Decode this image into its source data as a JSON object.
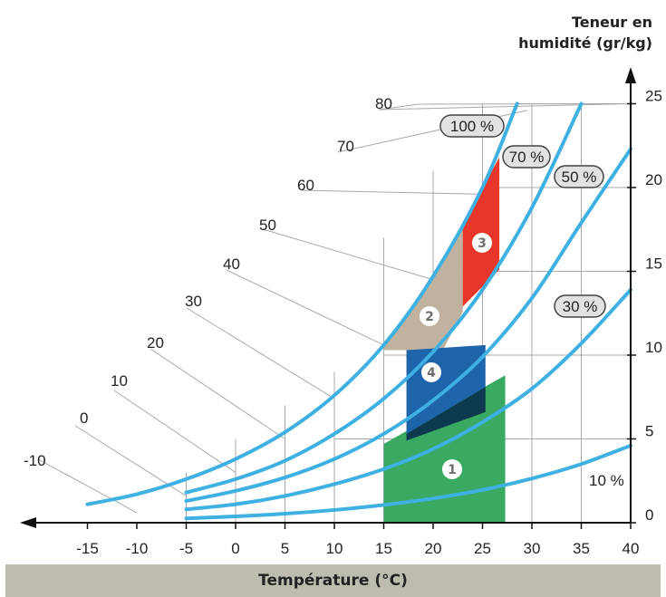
{
  "chart_data": {
    "type": "line",
    "title": "",
    "xlabel": "Température (°C)",
    "ylabel": "Teneur en humidité (gr/kg)",
    "xlim": [
      -15,
      40
    ],
    "ylim": [
      0,
      25
    ],
    "x_ticks": [
      "-15",
      "-10",
      "-5",
      "0",
      "5",
      "10",
      "15",
      "20",
      "25",
      "30",
      "35",
      "40"
    ],
    "y_ticks": [
      "0",
      "5",
      "10",
      "15",
      "20",
      "25"
    ],
    "enthalpy_ticks": [
      "-10",
      "0",
      "10",
      "20",
      "30",
      "40",
      "50",
      "60",
      "70",
      "80"
    ],
    "series": [
      {
        "name": "100 %",
        "x": [
          -15,
          -10,
          -5,
          0,
          5,
          10,
          15,
          20,
          25,
          28.5
        ],
        "y": [
          1.1,
          1.7,
          2.6,
          3.8,
          5.4,
          7.6,
          10.6,
          14.7,
          20.0,
          25.0
        ]
      },
      {
        "name": "70 %",
        "x": [
          -5,
          0,
          5,
          10,
          15,
          20,
          25,
          30,
          35
        ],
        "y": [
          1.8,
          2.6,
          3.7,
          5.3,
          7.4,
          10.2,
          13.9,
          18.8,
          25.0
        ]
      },
      {
        "name": "50 %",
        "x": [
          -5,
          0,
          5,
          10,
          15,
          20,
          25,
          30,
          35,
          40
        ],
        "y": [
          1.3,
          1.9,
          2.7,
          3.8,
          5.3,
          7.3,
          9.9,
          13.4,
          17.9,
          22.3
        ]
      },
      {
        "name": "30 %",
        "x": [
          -5,
          0,
          5,
          10,
          15,
          20,
          25,
          30,
          35,
          40
        ],
        "y": [
          0.8,
          1.1,
          1.6,
          2.3,
          3.2,
          4.4,
          6.0,
          8.0,
          10.7,
          13.9
        ]
      },
      {
        "name": "10 %",
        "x": [
          -5,
          0,
          5,
          10,
          15,
          20,
          25,
          30,
          35,
          40
        ],
        "y": [
          0.26,
          0.38,
          0.54,
          0.76,
          1.06,
          1.45,
          1.96,
          2.64,
          3.5,
          4.6
        ]
      }
    ],
    "zones": [
      {
        "label": "1",
        "color": "#3aaa62",
        "points": [
          [
            15,
            0
          ],
          [
            27.3,
            0
          ],
          [
            27.3,
            8.8
          ],
          [
            15,
            4.7
          ]
        ]
      },
      {
        "label": "2",
        "color": "#c0b29e",
        "points": [
          [
            15,
            10.6
          ],
          [
            19,
            13.9
          ],
          [
            23,
            17.6
          ],
          [
            23,
            12.6
          ],
          [
            21,
            10.3
          ],
          [
            15,
            10.3
          ]
        ]
      },
      {
        "label": "3",
        "color": "#e8372a",
        "points": [
          [
            23,
            17.8
          ],
          [
            25,
            20.0
          ],
          [
            26.7,
            21.8
          ],
          [
            26.7,
            15.1
          ],
          [
            23,
            12.9
          ]
        ]
      },
      {
        "label": "4",
        "color": "#1d64aa",
        "points": [
          [
            17.3,
            10.3
          ],
          [
            25.3,
            10.6
          ],
          [
            25.3,
            8.1
          ],
          [
            17.3,
            5.3
          ]
        ]
      }
    ],
    "grid": true,
    "legend": "none"
  },
  "labels": {
    "ylabel_line1": "Teneur en",
    "ylabel_line2": "humidité (gr/kg)",
    "xlabel": "Température (°C)",
    "pct_100": "100 %",
    "pct_70": "70 %",
    "pct_50": "50 %",
    "pct_30": "30 %",
    "pct_10": "10 %"
  },
  "colors": {
    "curve": "#3eb0e2",
    "grid": "#a9a9a9",
    "zone_outline_dark": "#0d3a4e",
    "footer_band": "#bdbcaf"
  }
}
